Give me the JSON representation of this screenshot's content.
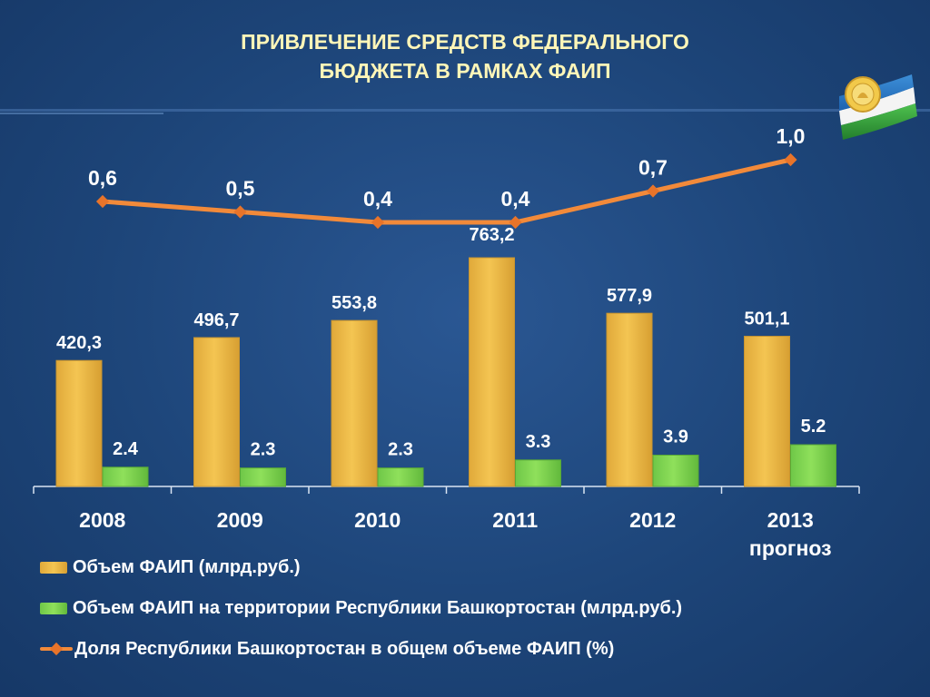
{
  "title_line1": "ПРИВЛЕЧЕНИЕ СРЕДСТВ ФЕДЕРАЛЬНОГО",
  "title_line2": "БЮДЖЕТА В РАМКАХ ФАИП",
  "colors": {
    "background": "#1d4579",
    "title": "#fff6b8",
    "bar_total": "#f4c552",
    "bar_regional": "#8fe05b",
    "line_share": "#f28a3a",
    "text": "#ffffff"
  },
  "logo": {
    "icon": "bashkortostan-flag-emblem-icon"
  },
  "chart_data": {
    "type": "bar",
    "categories": [
      "2008",
      "2009",
      "2010",
      "2011",
      "2012",
      "2013"
    ],
    "category_sublabels": [
      "",
      "",
      "",
      "",
      "",
      "прогноз"
    ],
    "series": [
      {
        "name": "Объем ФАИП (млрд.руб.)",
        "type": "bar",
        "values": [
          420.3,
          496.7,
          553.8,
          763.2,
          577.9,
          501.1
        ],
        "labels": [
          "420,3",
          "496,7",
          "553,8",
          "763,2",
          "577,9",
          "501,1"
        ],
        "color": "#f4c552"
      },
      {
        "name": "Объем ФАИП на территории Республики Башкортостан (млрд.руб.)",
        "type": "bar",
        "values": [
          2.4,
          2.3,
          2.3,
          3.3,
          3.9,
          5.2
        ],
        "labels": [
          "2.4",
          "2.3",
          "2.3",
          "3.3",
          "3.9",
          "5.2"
        ],
        "color": "#8fe05b"
      },
      {
        "name": "Доля Республики Башкортостан в общем объеме ФАИП (%)",
        "type": "line",
        "values": [
          0.6,
          0.5,
          0.4,
          0.4,
          0.7,
          1.0
        ],
        "labels": [
          "0,6",
          "0,5",
          "0,4",
          "0,4",
          "0,7",
          "1,0"
        ],
        "color": "#f28a3a"
      }
    ],
    "axis_lines": true,
    "grid": false,
    "legend_position": "bottom-left"
  }
}
